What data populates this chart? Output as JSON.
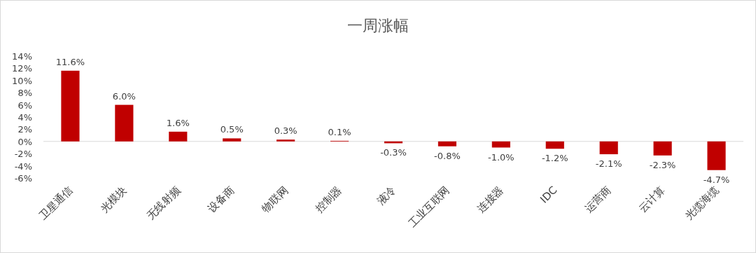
{
  "chart_data": {
    "type": "bar",
    "title": "一周涨幅",
    "categories": [
      "卫星通信",
      "光模块",
      "无线射频",
      "设备商",
      "物联网",
      "控制器",
      "液冷",
      "工业互联网",
      "连接器",
      "IDC",
      "运营商",
      "云计算",
      "光缆海缆"
    ],
    "values": [
      11.6,
      6.0,
      1.6,
      0.5,
      0.3,
      0.1,
      -0.3,
      -0.8,
      -1.0,
      -1.2,
      -2.1,
      -2.3,
      -4.7
    ],
    "value_labels": [
      "11.6%",
      "6.0%",
      "1.6%",
      "0.5%",
      "0.3%",
      "0.1%",
      "-0.3%",
      "-0.8%",
      "-1.0%",
      "-1.2%",
      "-2.1%",
      "-2.3%",
      "-4.7%"
    ],
    "color": "#c00000",
    "ylim": [
      -6,
      14
    ],
    "yticks": [
      {
        "value": -6,
        "label": "-6%"
      },
      {
        "value": -4,
        "label": "-4%"
      },
      {
        "value": -2,
        "label": "-2%"
      },
      {
        "value": 0,
        "label": "0%"
      },
      {
        "value": 2,
        "label": "2%"
      },
      {
        "value": 4,
        "label": "4%"
      },
      {
        "value": 6,
        "label": "6%"
      },
      {
        "value": 8,
        "label": "8%"
      },
      {
        "value": 10,
        "label": "10%"
      },
      {
        "value": 12,
        "label": "12%"
      },
      {
        "value": 14,
        "label": "14%"
      }
    ]
  }
}
